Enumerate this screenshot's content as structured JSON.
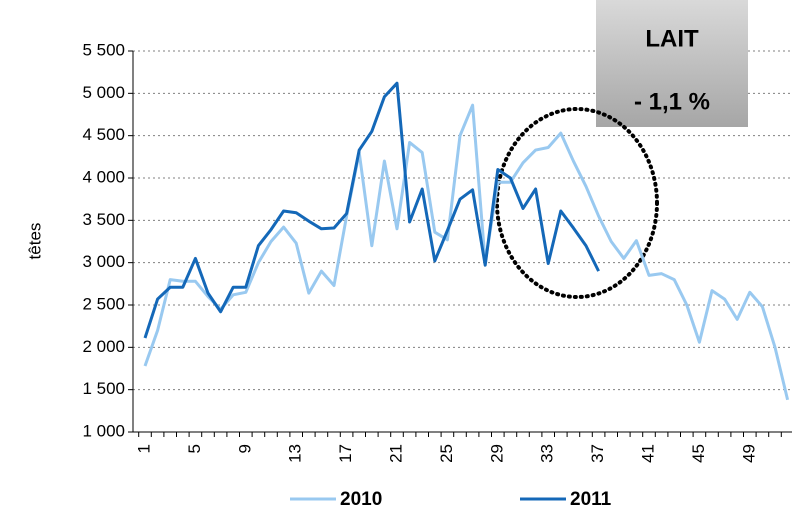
{
  "chart_data": {
    "type": "line",
    "y_label": "têtes",
    "box_title": "LAIT",
    "box_value": "- 1,1 %",
    "categories": [
      "1",
      null,
      null,
      null,
      "5",
      null,
      null,
      null,
      "9",
      null,
      null,
      null,
      "13",
      null,
      null,
      null,
      "17",
      null,
      null,
      null,
      "21",
      null,
      null,
      null,
      "25",
      null,
      null,
      null,
      "29",
      null,
      null,
      null,
      "33",
      null,
      null,
      null,
      "37",
      null,
      null,
      null,
      "41",
      null,
      null,
      null,
      "45",
      null,
      null,
      null,
      "49",
      null,
      null,
      null
    ],
    "series": [
      {
        "name": "2010",
        "color": "#99c9f0",
        "values": [
          1780,
          2200,
          2800,
          2780,
          2780,
          2600,
          2450,
          2620,
          2650,
          3000,
          3250,
          3420,
          3230,
          2640,
          2900,
          2730,
          3550,
          4300,
          3200,
          4200,
          3400,
          4420,
          4300,
          3360,
          3270,
          4500,
          4860,
          3000,
          3950,
          3950,
          4180,
          4330,
          4360,
          4530,
          4200,
          3900,
          3550,
          3250,
          3050,
          3260,
          2850,
          2870,
          2800,
          2500,
          2060,
          2670,
          2570,
          2330,
          2650,
          2480,
          2000,
          1380
        ]
      },
      {
        "name": "2011",
        "color": "#1468b8",
        "values": [
          2110,
          2570,
          2710,
          2710,
          3050,
          2640,
          2420,
          2710,
          2710,
          3200,
          3390,
          3610,
          3590,
          3490,
          3400,
          3410,
          3580,
          4330,
          4550,
          4960,
          5120,
          3480,
          3870,
          3020,
          3380,
          3750,
          3860,
          2970,
          4100,
          4000,
          3640,
          3870,
          2990,
          3610,
          3410,
          3200,
          2900,
          null,
          null,
          null,
          null,
          null,
          null,
          null,
          null,
          null,
          null,
          null,
          null,
          null,
          null,
          null
        ]
      }
    ],
    "ylim": [
      1000,
      5500
    ],
    "yticks": [
      {
        "value": 1000,
        "label": "1 000"
      },
      {
        "value": 1500,
        "label": "1 500"
      },
      {
        "value": 2000,
        "label": "2 000"
      },
      {
        "value": 2500,
        "label": "2 500"
      },
      {
        "value": 3000,
        "label": "3 000"
      },
      {
        "value": 3500,
        "label": "3 500"
      },
      {
        "value": 4000,
        "label": "4 000"
      },
      {
        "value": 4500,
        "label": "4 500"
      },
      {
        "value": 5000,
        "label": "5 000"
      },
      {
        "value": 5500,
        "label": "5 500"
      }
    ],
    "grid": true
  }
}
